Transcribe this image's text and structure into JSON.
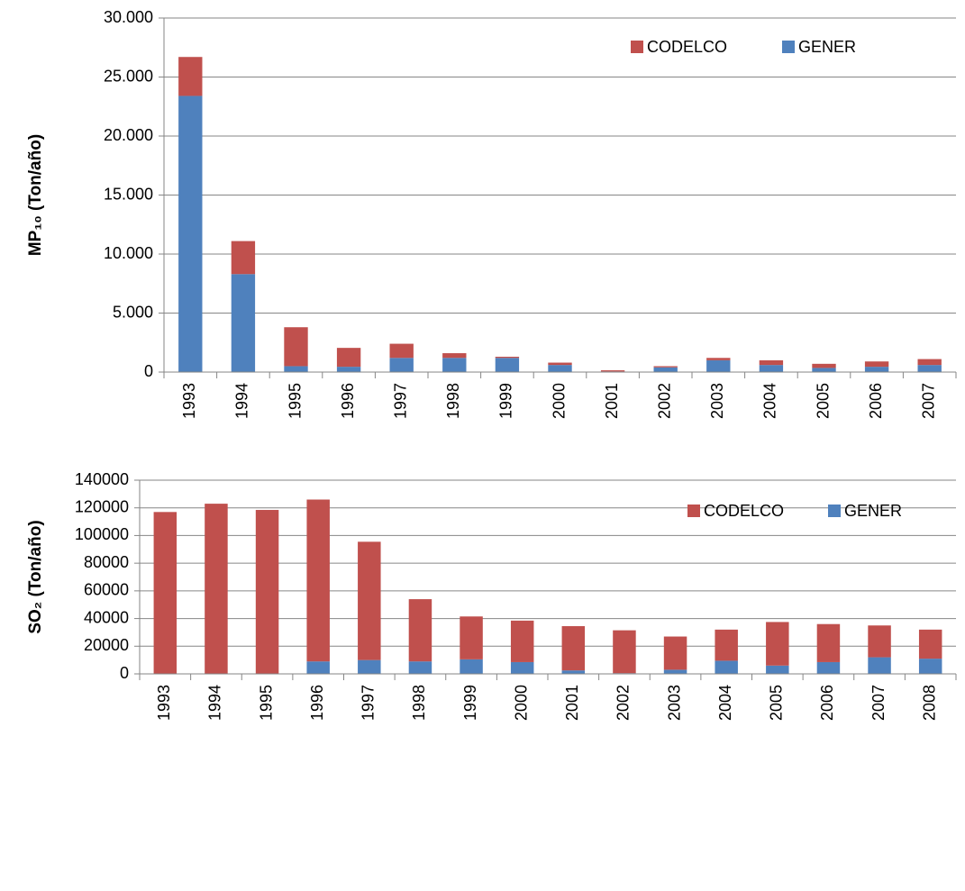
{
  "chart_data": [
    {
      "type": "bar",
      "stacked": true,
      "y_label": "MP₁₀ (Ton/año)",
      "categories": [
        "1993",
        "1994",
        "1995",
        "1996",
        "1997",
        "1998",
        "1999",
        "2000",
        "2001",
        "2002",
        "2003",
        "2004",
        "2005",
        "2006",
        "2007"
      ],
      "series": [
        {
          "name": "CODELCO",
          "color": "#c0504d",
          "values": [
            3300,
            2800,
            3300,
            1600,
            1200,
            400,
            100,
            200,
            100,
            100,
            200,
            400,
            350,
            450,
            500
          ]
        },
        {
          "name": "GENER",
          "color": "#4f81bd",
          "values": [
            23400,
            8300,
            500,
            450,
            1200,
            1200,
            1200,
            600,
            50,
            400,
            1000,
            600,
            350,
            450,
            600
          ]
        }
      ],
      "ylim": [
        0,
        30000
      ],
      "yticks": [
        0,
        {
          "value": 5000,
          "label": "5.000"
        },
        {
          "value": 10000,
          "label": "10.000"
        },
        {
          "value": 15000,
          "label": "15.000"
        },
        {
          "value": 20000,
          "label": "20.000"
        },
        {
          "value": 25000,
          "label": "25.000"
        },
        {
          "value": 30000,
          "label": "30.000"
        }
      ],
      "grid": true
    },
    {
      "type": "bar",
      "stacked": true,
      "y_label": "SO₂ (Ton/año)",
      "categories": [
        "1993",
        "1994",
        "1995",
        "1996",
        "1997",
        "1998",
        "1999",
        "2000",
        "2001",
        "2002",
        "2003",
        "2004",
        "2005",
        "2006",
        "2007",
        "2008"
      ],
      "series": [
        {
          "name": "CODELCO",
          "color": "#c0504d",
          "values": [
            117000,
            123000,
            118500,
            117000,
            85500,
            45000,
            31000,
            30000,
            32000,
            31000,
            24000,
            22500,
            31500,
            27500,
            23000,
            21000
          ]
        },
        {
          "name": "GENER",
          "color": "#4f81bd",
          "values": [
            0,
            0,
            0,
            9000,
            10000,
            9000,
            10500,
            8500,
            2500,
            500,
            3000,
            9500,
            6000,
            8500,
            12000,
            11000
          ]
        }
      ],
      "ylim": [
        0,
        140000
      ],
      "yticks": [
        0,
        20000,
        40000,
        60000,
        80000,
        100000,
        120000,
        140000
      ],
      "grid": true
    }
  ]
}
